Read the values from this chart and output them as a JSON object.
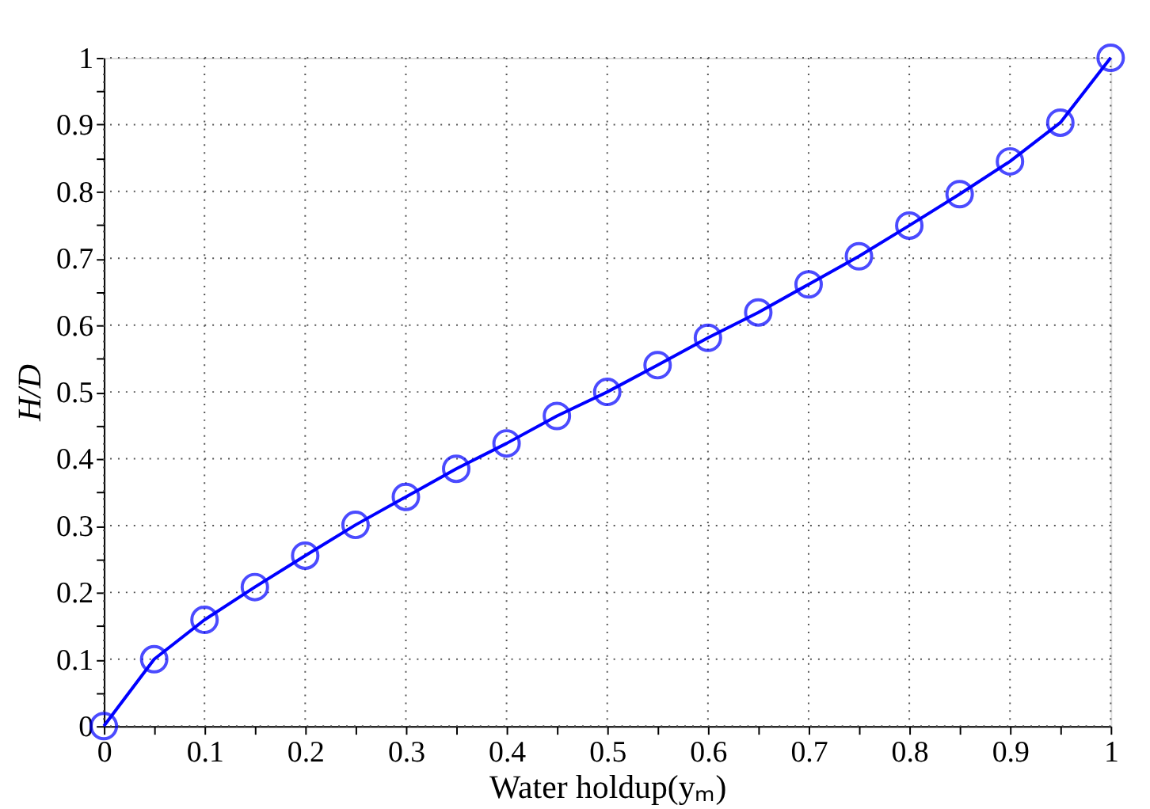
{
  "chart_data": {
    "type": "line",
    "xlabel": "Water holdup(yₘ)",
    "ylabel": "H/D",
    "x": [
      0,
      0.05,
      0.1,
      0.15,
      0.2,
      0.25,
      0.3,
      0.35,
      0.4,
      0.45,
      0.5,
      0.55,
      0.6,
      0.65,
      0.7,
      0.75,
      0.8,
      0.85,
      0.9,
      0.95,
      1
    ],
    "series": [
      {
        "color": "#0000ff",
        "values": [
          0,
          0.1,
          0.159,
          0.208,
          0.255,
          0.301,
          0.343,
          0.385,
          0.423,
          0.464,
          0.5,
          0.54,
          0.581,
          0.619,
          0.661,
          0.703,
          0.749,
          0.796,
          0.845,
          0.903,
          1
        ]
      }
    ],
    "xlim": [
      0,
      1
    ],
    "ylim": [
      0,
      1
    ],
    "xticks": [
      0,
      {
        "value": 0.05,
        "label": null
      },
      0.1,
      {
        "value": 0.15,
        "label": null
      },
      0.2,
      {
        "value": 0.25,
        "label": null
      },
      0.3,
      {
        "value": 0.35,
        "label": null
      },
      0.4,
      {
        "value": 0.45,
        "label": null
      },
      0.5,
      {
        "value": 0.55,
        "label": null
      },
      0.6,
      {
        "value": 0.65,
        "label": null
      },
      0.7,
      {
        "value": 0.75,
        "label": null
      },
      0.8,
      {
        "value": 0.85,
        "label": null
      },
      0.9,
      {
        "value": 0.95,
        "label": null
      },
      1
    ],
    "yticks": [
      0,
      {
        "value": 0.05,
        "label": null
      },
      0.1,
      {
        "value": 0.15,
        "label": null
      },
      0.2,
      {
        "value": 0.25,
        "label": null
      },
      0.3,
      {
        "value": 0.35,
        "label": null
      },
      0.4,
      {
        "value": 0.45,
        "label": null
      },
      0.5,
      {
        "value": 0.55,
        "label": null
      },
      0.6,
      {
        "value": 0.65,
        "label": null
      },
      0.7,
      {
        "value": 0.75,
        "label": null
      },
      0.8,
      {
        "value": 0.85,
        "label": null
      },
      0.9,
      {
        "value": 0.95,
        "label": null
      },
      1
    ],
    "grid": true,
    "marker": "circle",
    "line_style": "solid"
  }
}
